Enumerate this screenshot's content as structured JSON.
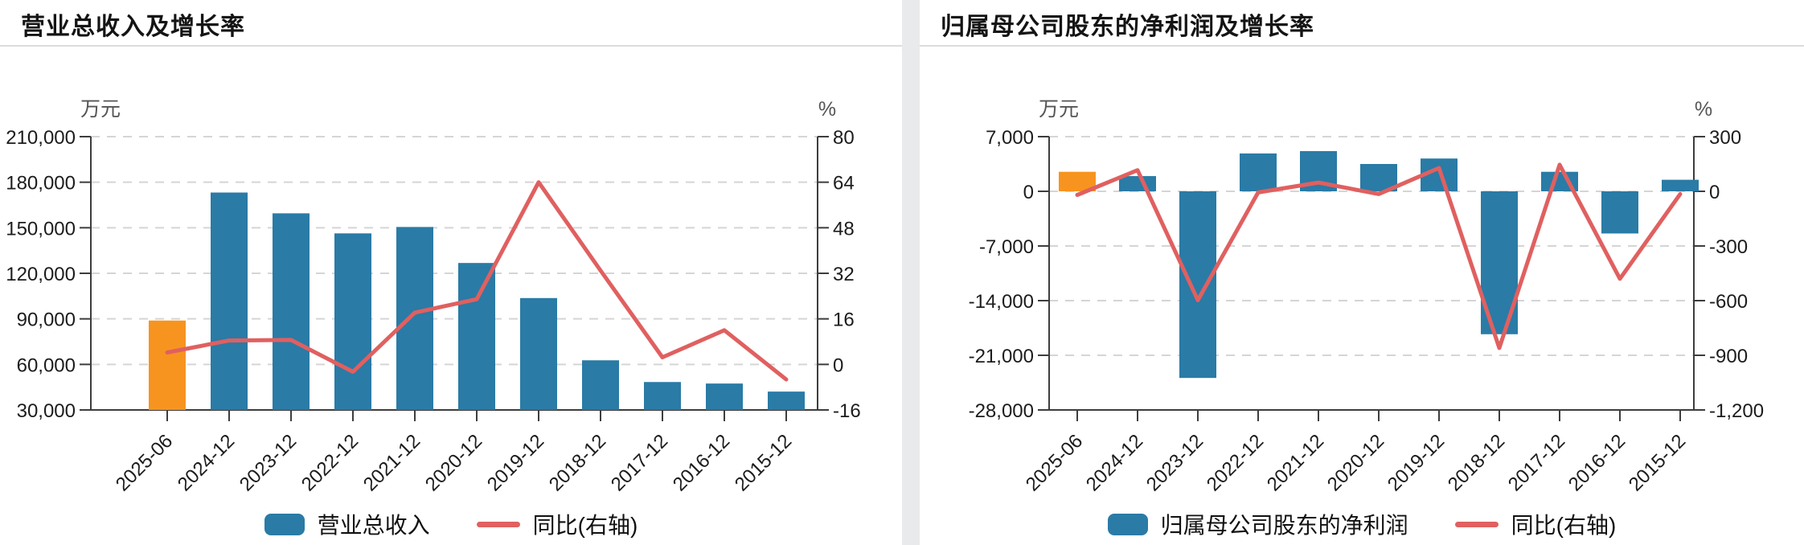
{
  "colors": {
    "bar_blue": "#2A7BA6",
    "bar_orange": "#F7941F",
    "line_red": "#E06060",
    "grid": "#d5d5d5",
    "axis": "#3d3d3d",
    "panel_divider": "#e9eaec"
  },
  "panels": [
    {
      "title": "营业总收入及增长率",
      "legend": [
        {
          "type": "bar",
          "label": "营业总收入"
        },
        {
          "type": "line",
          "label": "同比(右轴)"
        }
      ]
    },
    {
      "title": "归属母公司股东的净利润及增长率",
      "legend": [
        {
          "type": "bar",
          "label": "归属母公司股东的净利润"
        },
        {
          "type": "line",
          "label": "同比(右轴)"
        }
      ]
    }
  ],
  "chart_data": [
    {
      "type": "bar",
      "title": "营业总收入及增长率",
      "categories": [
        "2025-06",
        "2024-12",
        "2023-12",
        "2022-12",
        "2021-12",
        "2020-12",
        "2019-12",
        "2018-12",
        "2017-12",
        "2016-12",
        "2015-12"
      ],
      "series": [
        {
          "name": "营业总收入",
          "type": "bar",
          "axis": "left",
          "unit": "万元",
          "values": [
            88900,
            173200,
            159500,
            146300,
            150500,
            126800,
            103700,
            62700,
            48400,
            47400,
            42100
          ]
        },
        {
          "name": "同比(右轴)",
          "type": "line",
          "axis": "right",
          "unit": "%",
          "values": [
            4.2,
            8.4,
            8.6,
            -2.6,
            18.2,
            22.9,
            64,
            33,
            2.5,
            12,
            -5.3
          ]
        }
      ],
      "left_axis": {
        "unit": "万元",
        "min": 30000,
        "max": 210000,
        "ticks": [
          210000,
          180000,
          150000,
          120000,
          90000,
          60000,
          30000
        ]
      },
      "right_axis": {
        "unit": "%",
        "min": -16,
        "max": 80,
        "ticks": [
          80,
          64,
          48,
          32,
          16,
          0,
          -16
        ]
      },
      "grid": true,
      "legend_position": "bottom"
    },
    {
      "type": "bar",
      "title": "归属母公司股东的净利润及增长率",
      "categories": [
        "2025-06",
        "2024-12",
        "2023-12",
        "2022-12",
        "2021-12",
        "2020-12",
        "2019-12",
        "2018-12",
        "2017-12",
        "2016-12",
        "2015-12"
      ],
      "series": [
        {
          "name": "归属母公司股东的净利润",
          "type": "bar",
          "axis": "left",
          "unit": "万元",
          "values": [
            2500,
            1950,
            -23900,
            4850,
            5150,
            3500,
            4200,
            -18300,
            2500,
            -5400,
            1480
          ]
        },
        {
          "name": "同比(右轴)",
          "type": "line",
          "axis": "right",
          "unit": "%",
          "values": [
            -20,
            116,
            -598,
            -6,
            48,
            -15,
            128,
            -860,
            146,
            -480,
            -15
          ]
        }
      ],
      "left_axis": {
        "unit": "万元",
        "min": -28000,
        "max": 7000,
        "ticks": [
          7000,
          0,
          -7000,
          -14000,
          -21000,
          -28000
        ]
      },
      "right_axis": {
        "unit": "%",
        "min": -1200,
        "max": 300,
        "ticks": [
          300,
          0,
          -300,
          -600,
          -900,
          -1200
        ]
      },
      "grid": true,
      "legend_position": "bottom"
    }
  ]
}
